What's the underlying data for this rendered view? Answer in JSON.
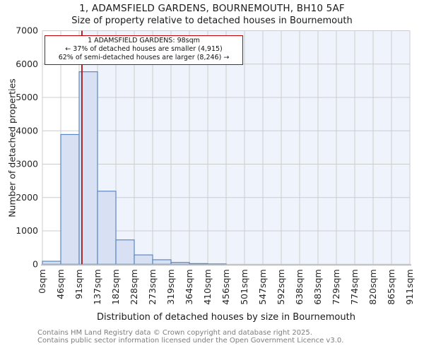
{
  "title": "1, ADAMSFIELD GARDENS, BOURNEMOUTH, BH10 5AF",
  "subtitle": "Size of property relative to detached houses in Bournemouth",
  "annotation": {
    "line1": "1 ADAMSFIELD GARDENS: 98sqm",
    "line2": "← 37% of detached houses are smaller (4,915)",
    "line3": "62% of semi-detached houses are larger (8,246) →"
  },
  "footer": {
    "line1": "Contains HM Land Registry data © Crown copyright and database right 2025.",
    "line2": "Contains public sector information licensed under the Open Government Licence v3.0."
  },
  "chart_data": {
    "type": "bar",
    "title": "Size of property relative to detached houses in Bournemouth",
    "xlabel": "Distribution of detached houses by size in Bournemouth",
    "ylabel": "Number of detached properties",
    "x_tick_labels": [
      "0sqm",
      "46sqm",
      "91sqm",
      "137sqm",
      "182sqm",
      "228sqm",
      "273sqm",
      "319sqm",
      "364sqm",
      "410sqm",
      "456sqm",
      "501sqm",
      "547sqm",
      "592sqm",
      "638sqm",
      "683sqm",
      "729sqm",
      "774sqm",
      "820sqm",
      "865sqm",
      "911sqm"
    ],
    "bin_edges_sqm": [
      0,
      46,
      91,
      137,
      182,
      228,
      273,
      319,
      364,
      410,
      456,
      501,
      547,
      592,
      638,
      683,
      729,
      774,
      820,
      865,
      911
    ],
    "values": [
      90,
      3890,
      5770,
      2190,
      730,
      280,
      135,
      55,
      20,
      10,
      0,
      0,
      0,
      0,
      0,
      0,
      0,
      0,
      0,
      0
    ],
    "ylim": [
      0,
      7000
    ],
    "y_ticks": [
      0,
      1000,
      2000,
      3000,
      4000,
      5000,
      6000,
      7000
    ],
    "marker_sqm": 98,
    "x_max_sqm": 911,
    "grid": true,
    "legend": false,
    "colors": {
      "bar_fill": "#d7e1f3",
      "bar_border": "#5b87c2",
      "marker_line": "#b01010",
      "annotation_border": "#c00000",
      "shade": "#eff3fb",
      "grid": "#cccccc",
      "axis_line": "#c2c2c2",
      "tick_text": "#262626"
    }
  }
}
